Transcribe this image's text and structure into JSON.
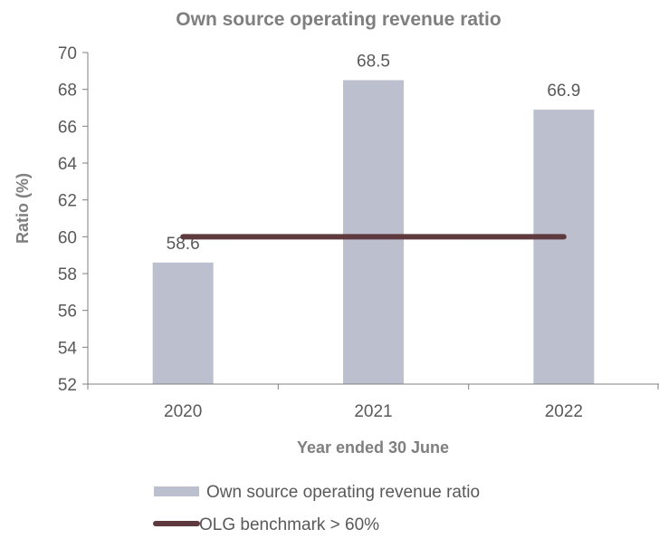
{
  "chart_data": {
    "type": "bar",
    "title": "Own source operating revenue ratio",
    "xlabel": "Year ended 30 June",
    "ylabel": "Ratio (%)",
    "ylim": [
      52,
      70
    ],
    "ytick_step": 2,
    "grid": false,
    "legend_placement": "bottom",
    "categories": [
      "2020",
      "2021",
      "2022"
    ],
    "series": [
      {
        "name": "Own source operating revenue ratio",
        "kind": "bar",
        "values": [
          58.6,
          68.5,
          66.9
        ],
        "data_labels": [
          "58.6",
          "68.5",
          "66.9"
        ],
        "color": "#bcbfce"
      },
      {
        "name": "OLG benchmark > 60%",
        "kind": "line",
        "values": [
          60,
          60,
          60
        ],
        "color": "#5e3a3e"
      }
    ]
  }
}
